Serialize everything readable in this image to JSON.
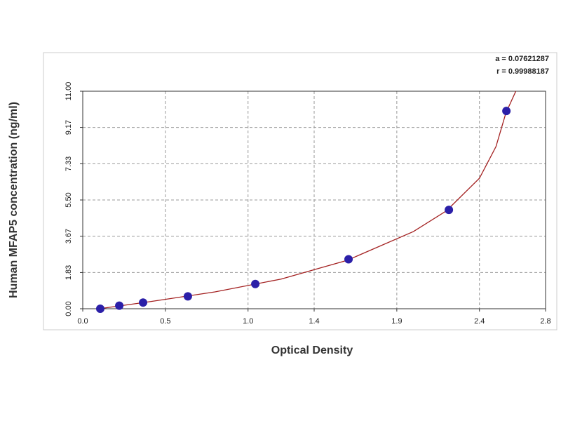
{
  "chart_data": {
    "type": "scatter",
    "x_label": "Optical Density",
    "y_label": "Human MFAP5 concentration (ng/ml)",
    "annotations": [
      "a = 0.07621287",
      "r = 0.99988187"
    ],
    "xlim": [
      0,
      2.8
    ],
    "xticks": [
      {
        "value": 0,
        "label": "0.0"
      },
      0.5,
      {
        "value": 1,
        "label": "1.0"
      },
      1.4,
      1.9,
      2.4,
      2.8
    ],
    "ylim": [
      0,
      11
    ],
    "yticks": [
      {
        "value": 0,
        "label": "0.00"
      },
      1.83,
      3.67,
      {
        "value": 5.5,
        "label": "5.50"
      },
      7.33,
      9.17,
      {
        "value": 11,
        "label": "11.00"
      }
    ],
    "grid": true,
    "points": {
      "color": "#2b1fa8",
      "x": [
        0.106,
        0.221,
        0.365,
        0.636,
        1.044,
        1.608,
        2.215,
        2.563
      ],
      "values": [
        0,
        0.156,
        0.3125,
        0.625,
        1.25,
        2.5,
        5,
        10
      ]
    },
    "curve": {
      "color": "#a32020",
      "x": [
        0.1,
        0.4,
        0.8,
        1.2,
        1.6,
        2.0,
        2.2,
        2.4,
        2.5,
        2.56,
        2.62
      ],
      "values": [
        0,
        0.35,
        0.85,
        1.5,
        2.45,
        3.9,
        4.95,
        6.6,
        8.2,
        9.9,
        11
      ]
    }
  }
}
